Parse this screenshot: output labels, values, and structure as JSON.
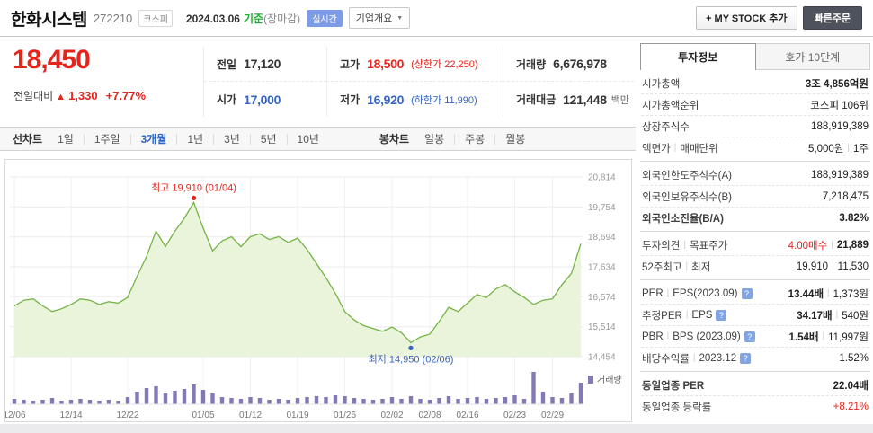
{
  "colors": {
    "rise": "#e5241c",
    "fall": "#3565c1",
    "active_tab": "#2d64c8",
    "line": "#74b345",
    "area_fill": "#e9f4da",
    "volume_bar": "#8379b7",
    "basis_green": "#1fae35"
  },
  "header": {
    "title": "한화시스템",
    "code": "272210",
    "market_badge": "코스피",
    "date": "2024.03.06",
    "basis_label": "기준",
    "market_state": "(장마감)",
    "realtime_badge": "실시간",
    "company_overview": "기업개요",
    "my_stock_button": "+ MY STOCK 추가",
    "quick_order_button": "빠른주문"
  },
  "price": {
    "current": "18,450",
    "change_label": "전일대비",
    "change_arrow": "▲",
    "change_value": "1,330",
    "change_percent": "+7.77%"
  },
  "quote": {
    "prev_label": "전일",
    "prev_value": "17,120",
    "high_label": "고가",
    "high_value": "18,500",
    "high_limit": "(상한가 22,250)",
    "volume_label": "거래량",
    "volume_value": "6,676,978",
    "open_label": "시가",
    "open_value": "17,000",
    "low_label": "저가",
    "low_value": "16,920",
    "low_limit": "(하한가 11,990)",
    "amount_label": "거래대금",
    "amount_value": "121,448",
    "amount_unit": "백만"
  },
  "chart_tabs": {
    "line_section_label": "선차트",
    "line_tabs": [
      "1일",
      "1주일",
      "3개월",
      "1년",
      "3년",
      "5년",
      "10년"
    ],
    "active_tab": "3개월",
    "candle_section_label": "봉차트",
    "candle_tabs": [
      "일봉",
      "주봉",
      "월봉"
    ]
  },
  "chart_data": {
    "type": "area",
    "title": "한화시스템 3개월 주가 추이",
    "ylim": [
      14454,
      20814
    ],
    "y_ticks": [
      20814,
      19754,
      18694,
      17634,
      16574,
      15514,
      14454
    ],
    "x_tick_labels": [
      "12/06",
      "12/14",
      "12/22",
      "01/05",
      "01/12",
      "01/19",
      "01/26",
      "02/02",
      "02/08",
      "02/16",
      "02/23",
      "02/29"
    ],
    "x_tick_indices": [
      0,
      6,
      12,
      20,
      25,
      30,
      35,
      40,
      44,
      48,
      53,
      57
    ],
    "prices": [
      16250,
      16450,
      16500,
      16250,
      16050,
      16150,
      16300,
      16500,
      16450,
      16300,
      16400,
      16350,
      16550,
      17300,
      18000,
      18900,
      18350,
      18900,
      19350,
      19910,
      19000,
      18200,
      18550,
      18700,
      18350,
      18700,
      18800,
      18600,
      18700,
      18500,
      18650,
      18250,
      17750,
      17250,
      16700,
      16050,
      15750,
      15550,
      15450,
      15350,
      15500,
      15300,
      14950,
      15150,
      15250,
      15700,
      16200,
      16050,
      16350,
      16650,
      16550,
      16850,
      17000,
      16750,
      16550,
      16300,
      16450,
      16500,
      17000,
      17400,
      18450
    ],
    "volume_relative": [
      6,
      5,
      4,
      5,
      7,
      4,
      5,
      6,
      5,
      4,
      5,
      4,
      8,
      14,
      18,
      20,
      12,
      15,
      17,
      22,
      16,
      12,
      8,
      7,
      6,
      8,
      7,
      5,
      6,
      5,
      7,
      8,
      9,
      8,
      10,
      9,
      7,
      6,
      5,
      6,
      8,
      6,
      9,
      6,
      5,
      7,
      9,
      6,
      7,
      8,
      6,
      7,
      8,
      10,
      6,
      36,
      14,
      8,
      7,
      12,
      24
    ],
    "annotation_high": {
      "text": "최고 19,910 (01/04)",
      "index": 19,
      "price": 19910
    },
    "annotation_low": {
      "text": "최저 14,950 (02/06)",
      "index": 42,
      "price": 14950
    },
    "volume_legend": "거래량"
  },
  "sidebar": {
    "tab_active": "투자정보",
    "tab_inactive": "호가 10단계",
    "groups": [
      {
        "rows": [
          {
            "label_parts": [
              "시가총액"
            ],
            "values": [
              {
                "text": "3조 4,856억원",
                "bold": true
              }
            ]
          },
          {
            "label_parts": [
              "시가총액순위"
            ],
            "values": [
              {
                "text": "코스피 106위"
              }
            ]
          },
          {
            "label_parts": [
              "상장주식수"
            ],
            "values": [
              {
                "text": "188,919,389"
              }
            ]
          },
          {
            "label_parts": [
              "액면가",
              "매매단위"
            ],
            "values": [
              {
                "text": "5,000원"
              },
              {
                "text": "1주"
              }
            ]
          }
        ]
      },
      {
        "rows": [
          {
            "label_parts": [
              "외국인한도주식수(A)"
            ],
            "values": [
              {
                "text": "188,919,389"
              }
            ]
          },
          {
            "label_parts": [
              "외국인보유주식수(B)"
            ],
            "values": [
              {
                "text": "7,218,475"
              }
            ]
          },
          {
            "label_parts": [
              "외국인소진율(B/A)"
            ],
            "label_bold": true,
            "values": [
              {
                "text": "3.82%",
                "bold": true
              }
            ]
          }
        ]
      },
      {
        "rows": [
          {
            "label_parts": [
              "투자의견",
              "목표주가"
            ],
            "values": [
              {
                "text": "4.00매수",
                "color": "red"
              },
              {
                "text": "21,889",
                "bold": true
              }
            ]
          },
          {
            "label_parts": [
              "52주최고",
              "최저"
            ],
            "values": [
              {
                "text": "19,910"
              },
              {
                "text": "11,530"
              }
            ]
          }
        ]
      },
      {
        "rows": [
          {
            "label_parts": [
              "PER",
              "EPS(2023.09)"
            ],
            "help": true,
            "values": [
              {
                "text": "13.44배",
                "bold": true
              },
              {
                "text": "1,373원"
              }
            ]
          },
          {
            "label_parts": [
              "추정PER",
              "EPS"
            ],
            "help": true,
            "values": [
              {
                "text": "34.17배",
                "bold": true
              },
              {
                "text": "540원"
              }
            ]
          },
          {
            "label_parts": [
              "PBR",
              "BPS (2023.09)"
            ],
            "help": true,
            "values": [
              {
                "text": "1.54배",
                "bold": true
              },
              {
                "text": "11,997원"
              }
            ]
          },
          {
            "label_parts": [
              "배당수익률",
              "2023.12"
            ],
            "help": true,
            "values": [
              {
                "text": "1.52%"
              }
            ]
          }
        ]
      },
      {
        "rows": [
          {
            "label_parts": [
              "동일업종 PER"
            ],
            "label_bold": true,
            "values": [
              {
                "text": "22.04배",
                "bold": true
              }
            ]
          },
          {
            "label_parts": [
              "동일업종 등락률"
            ],
            "values": [
              {
                "text": "+8.21%",
                "color": "red"
              }
            ]
          }
        ]
      }
    ]
  }
}
